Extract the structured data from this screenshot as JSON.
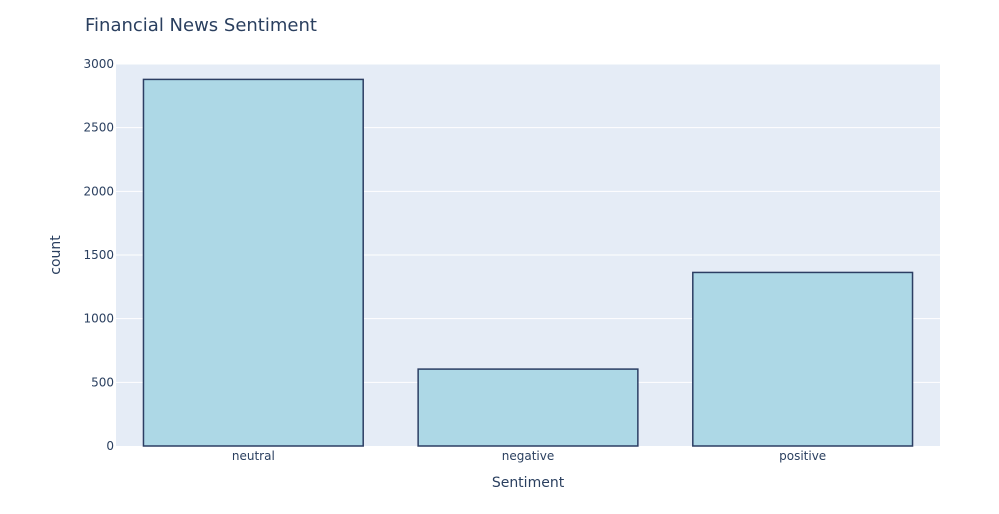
{
  "chart_data": {
    "type": "bar",
    "title": "Financial News Sentiment",
    "xlabel": "Sentiment",
    "ylabel": "count",
    "categories": [
      "neutral",
      "negative",
      "positive"
    ],
    "values": [
      2879,
      604,
      1363
    ],
    "ylim": [
      0,
      3000
    ],
    "yticks": [
      0,
      500,
      1000,
      1500,
      2000,
      2500,
      3000
    ],
    "grid": true,
    "legend": "none",
    "colors": {
      "bar_fill": "#add8e6",
      "bar_stroke": "#2c3e63",
      "plot_bg": "#e5ecf6",
      "grid": "#ffffff",
      "text": "#2a3f5f"
    }
  }
}
